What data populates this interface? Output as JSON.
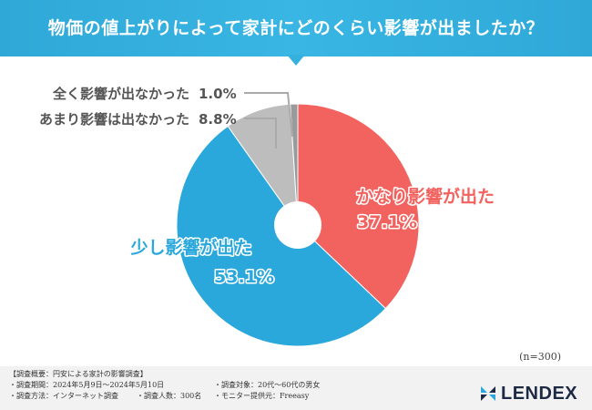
{
  "header": {
    "title": "物価の値上がりによって家計にどのくらい影響が出ましたか？"
  },
  "chart_data": {
    "type": "pie",
    "slices": [
      {
        "label": "かなり影響が出た",
        "value": 37.1,
        "display": "37.1%",
        "color": "#f2625e"
      },
      {
        "label": "少し影響が出た",
        "value": 53.1,
        "display": "53.1%",
        "color": "#2aa8dc"
      },
      {
        "label": "あまり影響は出なかった",
        "value": 8.8,
        "display": "8.8%",
        "color": "#bdbdbd"
      },
      {
        "label": "全く影響が出なかった",
        "value": 1.0,
        "display": "1.0%",
        "color": "#9a9a9a"
      }
    ],
    "sample_size": "(n=300)"
  },
  "footer": {
    "heading": "【調査概要：円安による家計の影響調査】",
    "period": "・調査期間：2024年5月9日〜2024年5月10日",
    "method": "・調査方法：インターネット調査",
    "count": "・調査人数：300名",
    "target": "・調査対象：20代〜60代の男女",
    "provider": "・モニター提供元：Freeasy"
  },
  "logo": {
    "text": "LENDEX",
    "icon": "lendex-logo-icon"
  }
}
